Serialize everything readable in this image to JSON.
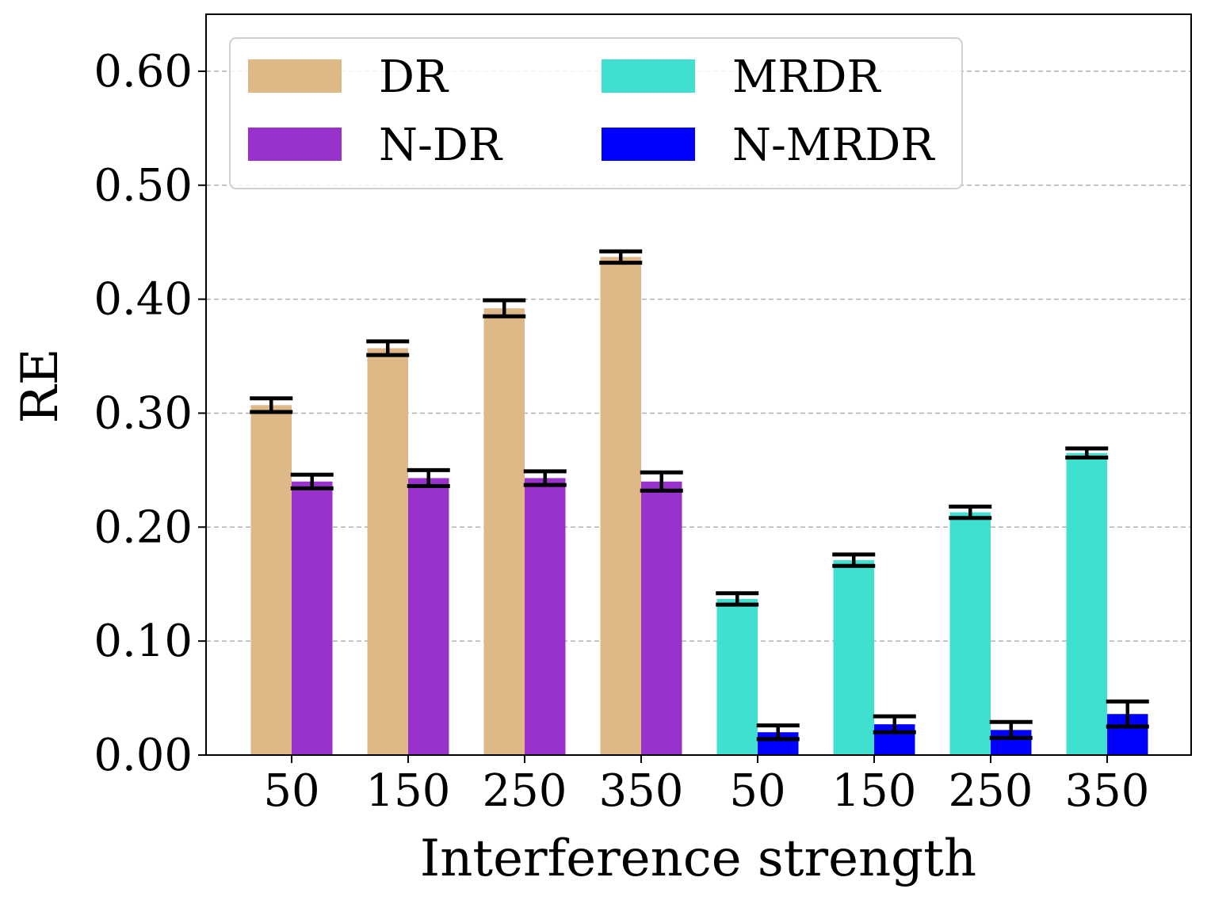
{
  "chart_data": {
    "type": "bar",
    "title": "",
    "xlabel": "Interference strength",
    "ylabel": "RE",
    "ylim": [
      0,
      0.65
    ],
    "yticks": [
      0.0,
      0.1,
      0.2,
      0.3,
      0.4,
      0.5,
      0.6
    ],
    "ytick_labels": [
      "0.00",
      "0.10",
      "0.20",
      "0.30",
      "0.40",
      "0.50",
      "0.60"
    ],
    "grid": "y-dashed",
    "legend_position": "top-left",
    "groups": [
      {
        "categories": [
          "50",
          "150",
          "250",
          "350"
        ],
        "series": [
          {
            "name": "DR",
            "color": "#deb887",
            "values": [
              0.307,
              0.357,
              0.392,
              0.437
            ],
            "err": [
              0.006,
              0.006,
              0.007,
              0.005
            ]
          },
          {
            "name": "N-DR",
            "color": "#9932cc",
            "values": [
              0.24,
              0.243,
              0.243,
              0.24
            ],
            "err": [
              0.006,
              0.007,
              0.006,
              0.008
            ]
          }
        ]
      },
      {
        "categories": [
          "50",
          "150",
          "250",
          "350"
        ],
        "series": [
          {
            "name": "MRDR",
            "color": "#40e0d0",
            "values": [
              0.137,
              0.171,
              0.213,
              0.265
            ],
            "err": [
              0.005,
              0.005,
              0.005,
              0.004
            ]
          },
          {
            "name": "N-MRDR",
            "color": "#0000ff",
            "values": [
              0.02,
              0.027,
              0.022,
              0.036
            ],
            "err": [
              0.006,
              0.007,
              0.007,
              0.011
            ]
          }
        ]
      }
    ]
  }
}
